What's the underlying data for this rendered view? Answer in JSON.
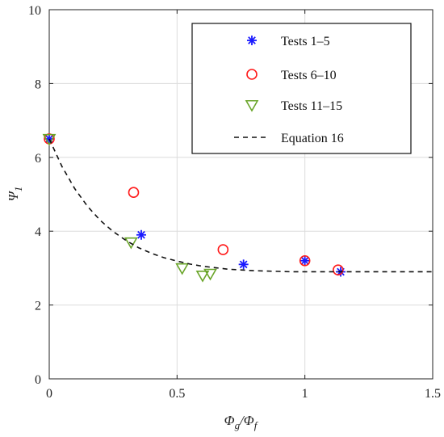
{
  "chart_data": {
    "type": "scatter",
    "xlabel": {
      "main": "Φ",
      "sub1": "g",
      "sep": "/Φ",
      "sub2": "f"
    },
    "ylabel": {
      "main": "Ψ",
      "sub": "1"
    },
    "xlim": [
      0,
      1.5
    ],
    "ylim": [
      0,
      10
    ],
    "xticks": [
      "0",
      "0.5",
      "1",
      "1.5"
    ],
    "yticks": [
      "0",
      "2",
      "4",
      "6",
      "8",
      "10"
    ],
    "grid": true,
    "legend_position": "top-right",
    "series": [
      {
        "name": "Tests 1–5",
        "marker": "asterisk",
        "color": "#1a1aff",
        "x": [
          0.0,
          0.36,
          0.76,
          1.0,
          1.14
        ],
        "y": [
          6.5,
          3.9,
          3.1,
          3.2,
          2.9
        ]
      },
      {
        "name": "Tests 6–10",
        "marker": "circle",
        "color": "#ff1a1a",
        "x": [
          0.0,
          0.33,
          0.68,
          1.0,
          1.13
        ],
        "y": [
          6.5,
          5.05,
          3.5,
          3.2,
          2.95
        ]
      },
      {
        "name": "Tests 11–15",
        "marker": "triangle-down",
        "color": "#6aa52a",
        "x": [
          0.0,
          0.32,
          0.52,
          0.6,
          0.63
        ],
        "y": [
          6.5,
          3.7,
          3.0,
          2.8,
          2.85
        ]
      },
      {
        "name": "Equation 16",
        "style": "dashed-line",
        "color": "#111111",
        "x": [
          0.0,
          0.05,
          0.1,
          0.15,
          0.2,
          0.25,
          0.3,
          0.35,
          0.4,
          0.45,
          0.5,
          0.55,
          0.6,
          0.65,
          0.7,
          0.75,
          0.8,
          0.85,
          0.9,
          0.95,
          1.0,
          1.05,
          1.1,
          1.15,
          1.2,
          1.25,
          1.3,
          1.35,
          1.4,
          1.45,
          1.5
        ],
        "y": [
          6.5,
          5.75,
          5.15,
          4.67,
          4.29,
          3.99,
          3.75,
          3.55,
          3.4,
          3.28,
          3.19,
          3.11,
          3.05,
          3.01,
          2.97,
          2.95,
          2.93,
          2.92,
          2.91,
          2.9,
          2.9,
          2.9,
          2.9,
          2.9,
          2.9,
          2.9,
          2.9,
          2.9,
          2.9,
          2.9,
          2.9
        ]
      }
    ]
  }
}
